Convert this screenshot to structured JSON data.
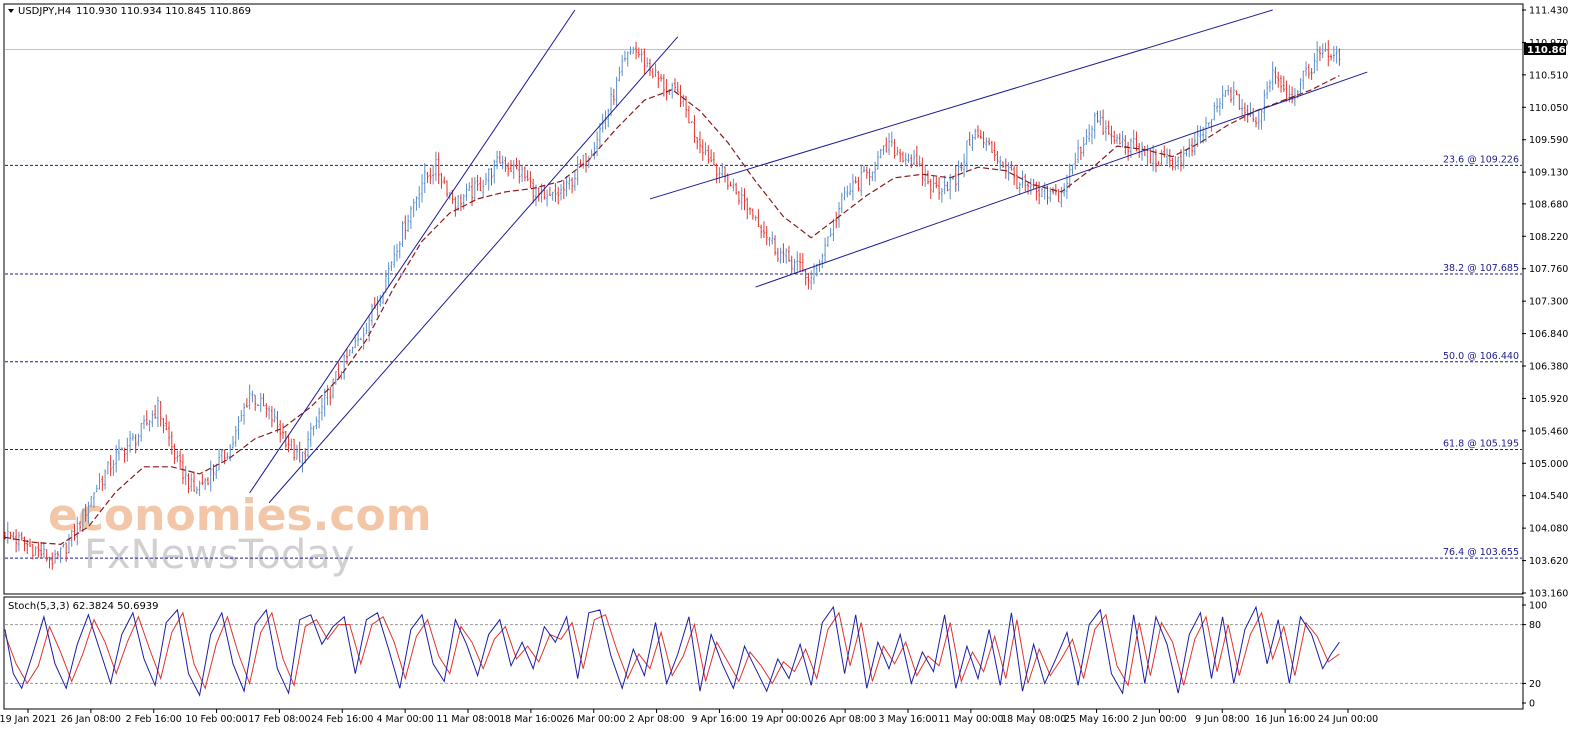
{
  "header": {
    "symbol": "USDJPY,H4",
    "ohlc": "110.930 110.934 110.845 110.869"
  },
  "stoch_header": "Stoch(5,3,3) 62.3824 50.6939",
  "current_price": "110.869",
  "watermark": {
    "top": "economies.com",
    "bottom": "FxNewsToday"
  },
  "colors": {
    "bull": "#5b8fc9",
    "bear": "#e0342f",
    "ma": "#8b1a1a",
    "channel": "#1b1b96",
    "fib": "#1d1d8c",
    "stoch_main": "#1c1ca8",
    "stoch_signal": "#e0342f",
    "grid": "#c6c6c6",
    "current_line": "#a9c7e6"
  },
  "chart_data": {
    "type": "candlestick",
    "title": "USDJPY,H4",
    "ylim": [
      103.16,
      111.43
    ],
    "y_ticks": [
      "111.430",
      "110.970",
      "110.510",
      "110.050",
      "109.590",
      "109.130",
      "108.680",
      "108.220",
      "107.760",
      "107.300",
      "106.840",
      "106.380",
      "105.920",
      "105.460",
      "105.000",
      "104.540",
      "104.080",
      "103.620",
      "103.160"
    ],
    "x_ticks": [
      "19 Jan 2021",
      "26 Jan 08:00",
      "2 Feb 16:00",
      "10 Feb 00:00",
      "17 Feb 08:00",
      "24 Feb 16:00",
      "4 Mar 00:00",
      "11 Mar 08:00",
      "18 Mar 16:00",
      "26 Mar 00:00",
      "2 Apr 08:00",
      "9 Apr 16:00",
      "19 Apr 00:00",
      "26 Apr 08:00",
      "3 May 16:00",
      "11 May 00:00",
      "18 May 08:00",
      "25 May 16:00",
      "2 Jun 00:00",
      "9 Jun 08:00",
      "16 Jun 16:00",
      "24 Jun 00:00"
    ],
    "close_path": [
      [
        0,
        104.0
      ],
      [
        10,
        103.8
      ],
      [
        18,
        103.6
      ],
      [
        25,
        104.0
      ],
      [
        32,
        104.6
      ],
      [
        40,
        105.1
      ],
      [
        48,
        105.4
      ],
      [
        55,
        105.8
      ],
      [
        62,
        105.0
      ],
      [
        68,
        104.6
      ],
      [
        75,
        104.9
      ],
      [
        82,
        105.3
      ],
      [
        88,
        106.0
      ],
      [
        95,
        105.7
      ],
      [
        102,
        105.3
      ],
      [
        106,
        105.0
      ],
      [
        112,
        105.6
      ],
      [
        120,
        106.3
      ],
      [
        128,
        106.8
      ],
      [
        135,
        107.4
      ],
      [
        140,
        108.0
      ],
      [
        145,
        108.5
      ],
      [
        150,
        109.0
      ],
      [
        155,
        109.2
      ],
      [
        162,
        108.7
      ],
      [
        170,
        108.9
      ],
      [
        178,
        109.3
      ],
      [
        186,
        109.1
      ],
      [
        194,
        108.7
      ],
      [
        202,
        108.9
      ],
      [
        210,
        109.4
      ],
      [
        216,
        109.9
      ],
      [
        222,
        110.6
      ],
      [
        226,
        110.9
      ],
      [
        232,
        110.6
      ],
      [
        238,
        110.3
      ],
      [
        243,
        110.2
      ],
      [
        248,
        109.7
      ],
      [
        254,
        109.3
      ],
      [
        262,
        108.9
      ],
      [
        270,
        108.5
      ],
      [
        278,
        108.0
      ],
      [
        285,
        107.8
      ],
      [
        290,
        107.6
      ],
      [
        296,
        108.2
      ],
      [
        302,
        108.8
      ],
      [
        310,
        109.1
      ],
      [
        318,
        109.5
      ],
      [
        326,
        109.3
      ],
      [
        334,
        108.9
      ],
      [
        342,
        109.0
      ],
      [
        348,
        109.7
      ],
      [
        356,
        109.4
      ],
      [
        364,
        109.0
      ],
      [
        372,
        108.8
      ],
      [
        380,
        108.8
      ],
      [
        386,
        109.4
      ],
      [
        392,
        109.9
      ],
      [
        398,
        109.6
      ],
      [
        406,
        109.5
      ],
      [
        414,
        109.3
      ],
      [
        422,
        109.3
      ],
      [
        428,
        109.5
      ],
      [
        434,
        109.9
      ],
      [
        440,
        110.3
      ],
      [
        446,
        110.0
      ],
      [
        450,
        109.8
      ],
      [
        456,
        110.6
      ],
      [
        462,
        110.2
      ],
      [
        468,
        110.5
      ],
      [
        474,
        110.9
      ],
      [
        480,
        110.7
      ]
    ],
    "ma_path": [
      [
        0,
        103.95
      ],
      [
        10,
        103.88
      ],
      [
        20,
        103.85
      ],
      [
        30,
        104.1
      ],
      [
        40,
        104.6
      ],
      [
        50,
        104.95
      ],
      [
        60,
        104.95
      ],
      [
        70,
        104.85
      ],
      [
        80,
        105.05
      ],
      [
        90,
        105.35
      ],
      [
        100,
        105.5
      ],
      [
        110,
        105.8
      ],
      [
        120,
        106.2
      ],
      [
        130,
        106.75
      ],
      [
        140,
        107.5
      ],
      [
        150,
        108.15
      ],
      [
        160,
        108.55
      ],
      [
        170,
        108.75
      ],
      [
        180,
        108.85
      ],
      [
        190,
        108.9
      ],
      [
        200,
        109.0
      ],
      [
        210,
        109.3
      ],
      [
        220,
        109.75
      ],
      [
        230,
        110.15
      ],
      [
        240,
        110.3
      ],
      [
        250,
        110.0
      ],
      [
        260,
        109.55
      ],
      [
        270,
        109.0
      ],
      [
        280,
        108.5
      ],
      [
        290,
        108.2
      ],
      [
        300,
        108.5
      ],
      [
        310,
        108.8
      ],
      [
        320,
        109.05
      ],
      [
        330,
        109.1
      ],
      [
        340,
        109.05
      ],
      [
        350,
        109.2
      ],
      [
        360,
        109.15
      ],
      [
        370,
        108.95
      ],
      [
        380,
        108.85
      ],
      [
        390,
        109.15
      ],
      [
        400,
        109.5
      ],
      [
        410,
        109.45
      ],
      [
        420,
        109.35
      ],
      [
        430,
        109.55
      ],
      [
        440,
        109.8
      ],
      [
        450,
        110.0
      ],
      [
        460,
        110.15
      ],
      [
        470,
        110.3
      ],
      [
        480,
        110.5
      ]
    ],
    "channels": [
      {
        "from": [
          88,
          104.58
        ],
        "to": [
          205,
          111.43
        ]
      },
      {
        "from": [
          95,
          104.44
        ],
        "to": [
          242,
          111.05
        ]
      },
      {
        "from": [
          232,
          108.75
        ],
        "to": [
          456,
          111.43
        ]
      },
      {
        "from": [
          270,
          107.5
        ],
        "to": [
          490,
          110.55
        ]
      }
    ],
    "fib_levels": [
      {
        "label": "23.6 @ 109.226",
        "price": 109.226
      },
      {
        "label": "38.2 @ 107.685",
        "price": 107.685
      },
      {
        "label": "50.0 @ 106.440",
        "price": 106.44
      },
      {
        "label": "61.8 @ 105.195",
        "price": 105.195
      },
      {
        "label": "76.4 @ 103.655",
        "price": 103.655
      }
    ]
  },
  "stoch_data": {
    "ylim": [
      0,
      100
    ],
    "ticks": [
      "100",
      "80",
      "20",
      "0"
    ],
    "levels": [
      80,
      20
    ],
    "main_path": [
      [
        0,
        75
      ],
      [
        3,
        30
      ],
      [
        6,
        15
      ],
      [
        10,
        50
      ],
      [
        14,
        88
      ],
      [
        18,
        40
      ],
      [
        22,
        15
      ],
      [
        26,
        60
      ],
      [
        30,
        90
      ],
      [
        34,
        55
      ],
      [
        38,
        20
      ],
      [
        42,
        70
      ],
      [
        46,
        92
      ],
      [
        50,
        45
      ],
      [
        54,
        18
      ],
      [
        58,
        82
      ],
      [
        62,
        95
      ],
      [
        66,
        30
      ],
      [
        70,
        8
      ],
      [
        74,
        70
      ],
      [
        78,
        92
      ],
      [
        82,
        40
      ],
      [
        86,
        12
      ],
      [
        90,
        80
      ],
      [
        94,
        95
      ],
      [
        98,
        35
      ],
      [
        102,
        10
      ],
      [
        106,
        85
      ],
      [
        110,
        90
      ],
      [
        114,
        60
      ],
      [
        118,
        78
      ],
      [
        122,
        88
      ],
      [
        126,
        30
      ],
      [
        130,
        85
      ],
      [
        134,
        92
      ],
      [
        138,
        55
      ],
      [
        142,
        15
      ],
      [
        146,
        75
      ],
      [
        150,
        90
      ],
      [
        154,
        40
      ],
      [
        158,
        22
      ],
      [
        162,
        85
      ],
      [
        166,
        60
      ],
      [
        170,
        28
      ],
      [
        174,
        70
      ],
      [
        178,
        85
      ],
      [
        182,
        38
      ],
      [
        186,
        62
      ],
      [
        190,
        35
      ],
      [
        194,
        78
      ],
      [
        198,
        62
      ],
      [
        202,
        88
      ],
      [
        206,
        25
      ],
      [
        210,
        92
      ],
      [
        214,
        95
      ],
      [
        218,
        48
      ],
      [
        222,
        15
      ],
      [
        226,
        55
      ],
      [
        230,
        28
      ],
      [
        234,
        82
      ],
      [
        238,
        20
      ],
      [
        242,
        50
      ],
      [
        246,
        88
      ],
      [
        250,
        12
      ],
      [
        254,
        70
      ],
      [
        258,
        40
      ],
      [
        262,
        15
      ],
      [
        266,
        58
      ],
      [
        270,
        35
      ],
      [
        274,
        12
      ],
      [
        278,
        45
      ],
      [
        282,
        25
      ],
      [
        286,
        60
      ],
      [
        290,
        18
      ],
      [
        294,
        82
      ],
      [
        298,
        98
      ],
      [
        302,
        30
      ],
      [
        306,
        90
      ],
      [
        310,
        15
      ],
      [
        314,
        62
      ],
      [
        318,
        35
      ],
      [
        322,
        70
      ],
      [
        326,
        20
      ],
      [
        330,
        52
      ],
      [
        334,
        32
      ],
      [
        338,
        90
      ],
      [
        342,
        15
      ],
      [
        346,
        58
      ],
      [
        350,
        25
      ],
      [
        354,
        75
      ],
      [
        358,
        18
      ],
      [
        362,
        92
      ],
      [
        366,
        12
      ],
      [
        370,
        60
      ],
      [
        374,
        20
      ],
      [
        378,
        45
      ],
      [
        382,
        72
      ],
      [
        386,
        18
      ],
      [
        390,
        80
      ],
      [
        394,
        95
      ],
      [
        398,
        30
      ],
      [
        402,
        10
      ],
      [
        406,
        90
      ],
      [
        410,
        20
      ],
      [
        414,
        88
      ],
      [
        418,
        60
      ],
      [
        422,
        10
      ],
      [
        426,
        70
      ],
      [
        430,
        92
      ],
      [
        434,
        25
      ],
      [
        438,
        88
      ],
      [
        442,
        20
      ],
      [
        446,
        75
      ],
      [
        450,
        98
      ],
      [
        454,
        40
      ],
      [
        458,
        85
      ],
      [
        462,
        20
      ],
      [
        466,
        88
      ],
      [
        470,
        70
      ],
      [
        474,
        35
      ],
      [
        477,
        50
      ],
      [
        480,
        62
      ]
    ],
    "signal_path": [
      [
        0,
        70
      ],
      [
        4,
        40
      ],
      [
        8,
        20
      ],
      [
        12,
        38
      ],
      [
        16,
        78
      ],
      [
        20,
        52
      ],
      [
        24,
        22
      ],
      [
        28,
        50
      ],
      [
        32,
        85
      ],
      [
        36,
        62
      ],
      [
        40,
        30
      ],
      [
        44,
        62
      ],
      [
        48,
        88
      ],
      [
        52,
        55
      ],
      [
        56,
        25
      ],
      [
        60,
        72
      ],
      [
        64,
        92
      ],
      [
        68,
        40
      ],
      [
        72,
        15
      ],
      [
        76,
        60
      ],
      [
        80,
        88
      ],
      [
        84,
        50
      ],
      [
        88,
        20
      ],
      [
        92,
        72
      ],
      [
        96,
        92
      ],
      [
        100,
        45
      ],
      [
        104,
        18
      ],
      [
        108,
        78
      ],
      [
        112,
        85
      ],
      [
        116,
        65
      ],
      [
        120,
        80
      ],
      [
        124,
        80
      ],
      [
        128,
        40
      ],
      [
        132,
        80
      ],
      [
        136,
        88
      ],
      [
        140,
        62
      ],
      [
        144,
        25
      ],
      [
        148,
        68
      ],
      [
        152,
        85
      ],
      [
        156,
        48
      ],
      [
        160,
        30
      ],
      [
        164,
        78
      ],
      [
        168,
        62
      ],
      [
        172,
        35
      ],
      [
        176,
        65
      ],
      [
        180,
        78
      ],
      [
        184,
        45
      ],
      [
        188,
        58
      ],
      [
        192,
        42
      ],
      [
        196,
        70
      ],
      [
        200,
        65
      ],
      [
        204,
        82
      ],
      [
        208,
        35
      ],
      [
        212,
        85
      ],
      [
        216,
        90
      ],
      [
        220,
        55
      ],
      [
        224,
        25
      ],
      [
        228,
        50
      ],
      [
        232,
        35
      ],
      [
        236,
        72
      ],
      [
        240,
        28
      ],
      [
        244,
        48
      ],
      [
        248,
        80
      ],
      [
        252,
        22
      ],
      [
        256,
        62
      ],
      [
        260,
        42
      ],
      [
        264,
        22
      ],
      [
        268,
        52
      ],
      [
        272,
        38
      ],
      [
        276,
        20
      ],
      [
        280,
        42
      ],
      [
        284,
        32
      ],
      [
        288,
        55
      ],
      [
        292,
        25
      ],
      [
        296,
        75
      ],
      [
        300,
        92
      ],
      [
        304,
        38
      ],
      [
        308,
        82
      ],
      [
        312,
        22
      ],
      [
        316,
        58
      ],
      [
        320,
        40
      ],
      [
        324,
        62
      ],
      [
        328,
        28
      ],
      [
        332,
        48
      ],
      [
        336,
        38
      ],
      [
        340,
        82
      ],
      [
        344,
        22
      ],
      [
        348,
        52
      ],
      [
        352,
        32
      ],
      [
        356,
        68
      ],
      [
        360,
        25
      ],
      [
        364,
        85
      ],
      [
        368,
        20
      ],
      [
        372,
        55
      ],
      [
        376,
        28
      ],
      [
        380,
        45
      ],
      [
        384,
        65
      ],
      [
        388,
        25
      ],
      [
        392,
        75
      ],
      [
        396,
        90
      ],
      [
        400,
        38
      ],
      [
        404,
        18
      ],
      [
        408,
        82
      ],
      [
        412,
        28
      ],
      [
        416,
        82
      ],
      [
        420,
        62
      ],
      [
        424,
        18
      ],
      [
        428,
        65
      ],
      [
        432,
        88
      ],
      [
        436,
        32
      ],
      [
        440,
        80
      ],
      [
        444,
        28
      ],
      [
        448,
        70
      ],
      [
        452,
        92
      ],
      [
        456,
        45
      ],
      [
        460,
        78
      ],
      [
        464,
        28
      ],
      [
        468,
        82
      ],
      [
        472,
        68
      ],
      [
        476,
        42
      ],
      [
        480,
        50
      ]
    ]
  }
}
